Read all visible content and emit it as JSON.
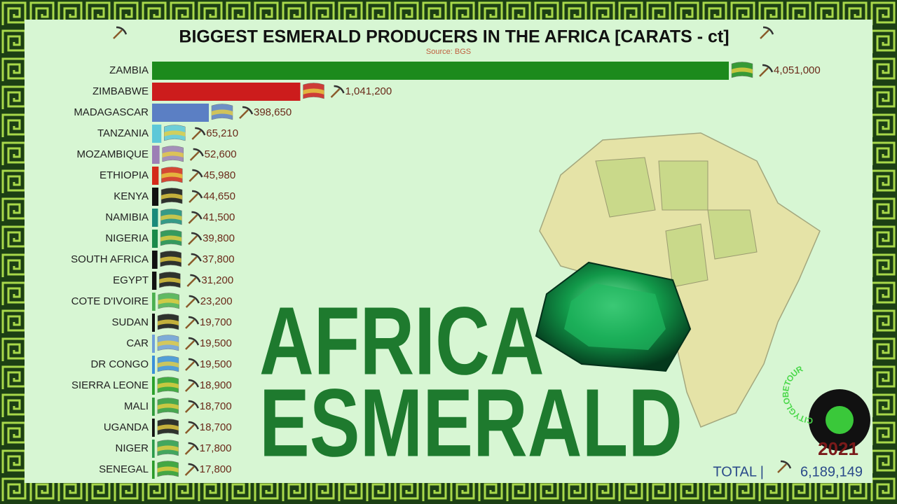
{
  "chart_data": {
    "type": "bar",
    "title": "BIGGEST ESMERALD PRODUCERS IN THE AFRICA [CARATS - ct]",
    "subtitle": "Source: BGS",
    "categories": [
      "ZAMBIA",
      "ZIMBABWE",
      "MADAGASCAR",
      "TANZANIA",
      "MOZAMBIQUE",
      "ETHIOPIA",
      "KENYA",
      "NAMIBIA",
      "NIGERIA",
      "SOUTH AFRICA",
      "EGYPT",
      "COTE D'IVOIRE",
      "SUDAN",
      "CAR",
      "DR CONGO",
      "SIERRA LEONE",
      "MALI",
      "UGANDA",
      "NIGER",
      "SENEGAL"
    ],
    "values": [
      4051000,
      1041200,
      398650,
      65210,
      52600,
      45980,
      44650,
      41500,
      39800,
      37800,
      31200,
      23200,
      19700,
      19500,
      19500,
      18900,
      18700,
      18700,
      17800,
      17800
    ],
    "value_labels": [
      "4,051,000",
      "1,041,200",
      "398,650",
      "65,210",
      "52,600",
      "45,980",
      "44,650",
      "41,500",
      "39,800",
      "37,800",
      "31,200",
      "23,200",
      "19,700",
      "19,500",
      "19,500",
      "18,900",
      "18,700",
      "18,700",
      "17,800",
      "17,800"
    ],
    "colors": [
      "#1c8a1c",
      "#cc1c1c",
      "#5b7fc4",
      "#5cc8d8",
      "#9c7fb5",
      "#d42a1a",
      "#111111",
      "#1a8a7a",
      "#1a8a4a",
      "#111111",
      "#111111",
      "#4caf50",
      "#111111",
      "#6f9fd8",
      "#3a8fd8",
      "#2aa02a",
      "#2e9a3a",
      "#111111",
      "#2a9a4a",
      "#2a9a2a"
    ],
    "headline": [
      "AFRICA",
      "ESMERALD"
    ],
    "logo": "CITYGLOBETOUR",
    "year": 2021,
    "total_text": "TOTAL |",
    "total": "6,189,149"
  }
}
